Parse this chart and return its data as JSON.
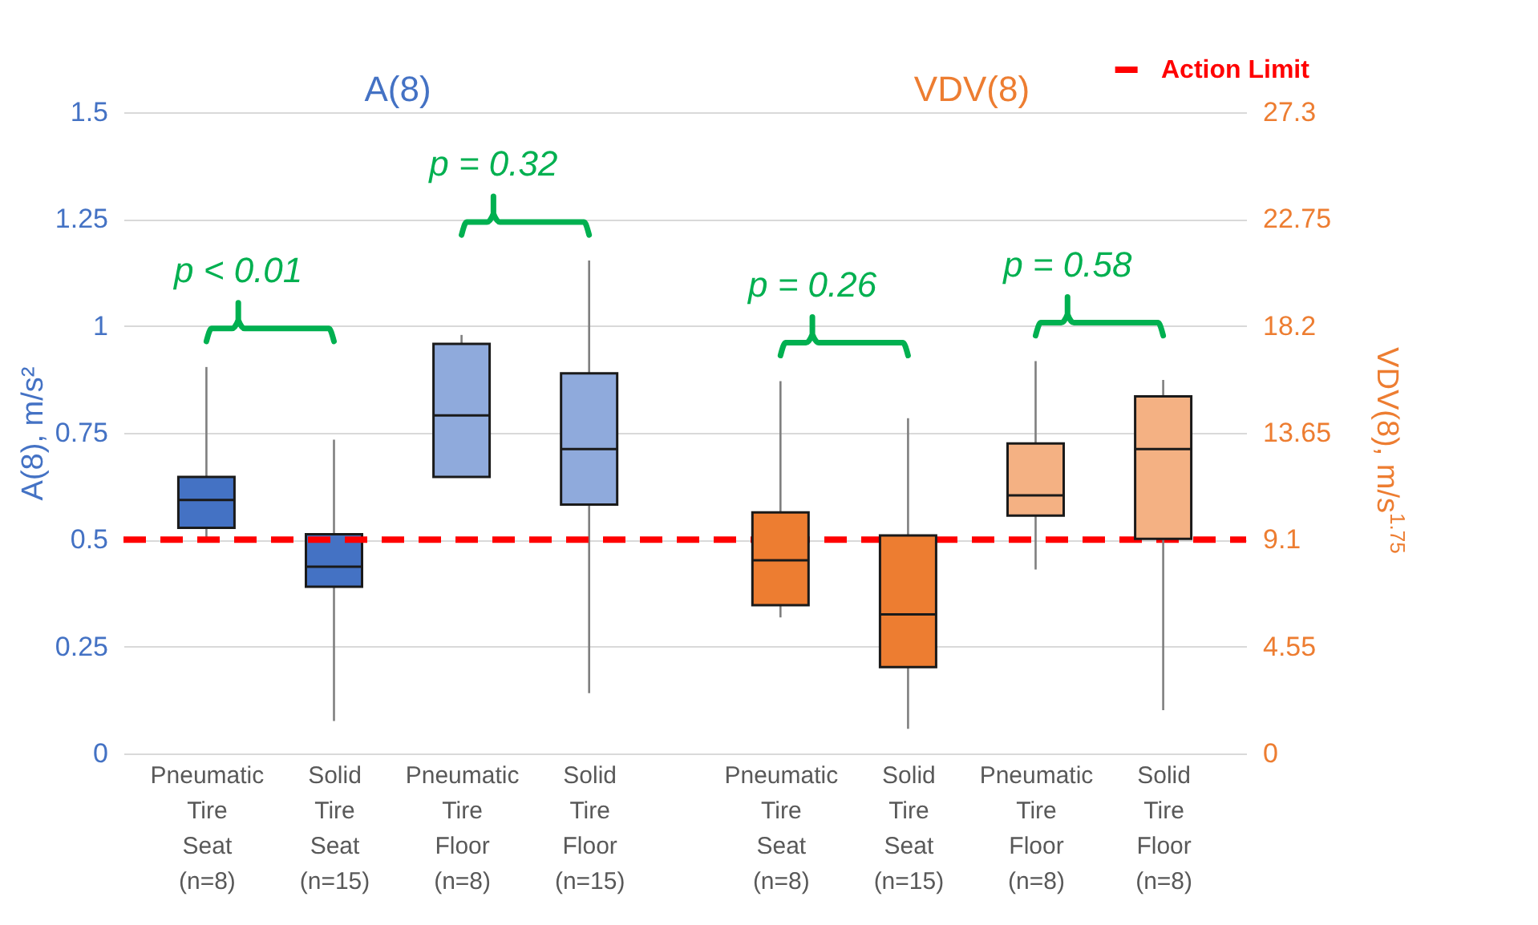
{
  "chart_data": {
    "type": "box",
    "categories": [
      "Pneumatic Tire Seat (n=8)",
      "Solid Tire Seat (n=15)",
      "Pneumatic Tire Floor (n=8)",
      "Solid Tire Floor (n=15)",
      "Pneumatic Tire Seat (n=8)",
      "Solid Tire Seat (n=15)",
      "Pneumatic Tire Floor (n=8)",
      "Solid Tire Floor (n=8)"
    ],
    "series": [
      {
        "name": "A(8)",
        "color": "#4472c4",
        "colors": [
          "#4472c4",
          "#4472c4",
          "#8faadc",
          "#8faadc",
          null,
          null,
          null,
          null
        ],
        "boxes": [
          {
            "low": 0.506,
            "q1": 0.528,
            "median": 0.593,
            "q3": 0.647,
            "high": 0.904
          },
          {
            "low": 0.076,
            "q1": 0.39,
            "median": 0.437,
            "q3": 0.513,
            "high": 0.734
          },
          {
            "low": 0.647,
            "q1": 0.647,
            "median": 0.791,
            "q3": 0.958,
            "high": 0.979
          },
          {
            "low": 0.141,
            "q1": 0.582,
            "median": 0.712,
            "q3": 0.889,
            "high": 1.153
          },
          null,
          null,
          null,
          null
        ]
      },
      {
        "name": "VDV(8)",
        "color": "#ed7d31",
        "axis": "y2",
        "colors": [
          null,
          null,
          null,
          null,
          "#ed7d31",
          "#ed7d31",
          "#f4b183",
          "#f4b183"
        ],
        "boxes": [
          null,
          null,
          null,
          null,
          {
            "low": 5.79,
            "q1": 6.31,
            "median": 8.22,
            "q3": 10.26,
            "high": 15.85
          },
          {
            "low": 1.05,
            "q1": 3.68,
            "median": 5.92,
            "q3": 9.28,
            "high": 14.27
          },
          {
            "low": 7.83,
            "q1": 10.13,
            "median": 10.99,
            "q3": 13.2,
            "high": 16.7
          },
          {
            "low": 1.84,
            "q1": 9.14,
            "median": 12.96,
            "q3": 15.2,
            "high": 15.9
          }
        ]
      }
    ],
    "ylabel": "A(8), m/s²",
    "y2label": "VDV(8), m/s$^{1.75}$",
    "ylim": [
      0,
      1.5
    ],
    "yticks": [
      0,
      0.25,
      0.5,
      0.75,
      1,
      1.25,
      1.5
    ],
    "y2lim": [
      0,
      27.3
    ],
    "y2ticks": [
      0,
      4.55,
      9.1,
      13.65,
      18.2,
      22.75,
      27.3
    ],
    "ref_lines": [
      {
        "axis": "y",
        "value": 0.5,
        "label": "Action Limit",
        "color": "#ff0000",
        "line_style": "dashed"
      }
    ],
    "annotations": [
      "p < 0.01",
      "p = 0.32",
      "p = 0.26",
      "p = 0.58"
    ],
    "grid": "y",
    "legend": "top right"
  }
}
